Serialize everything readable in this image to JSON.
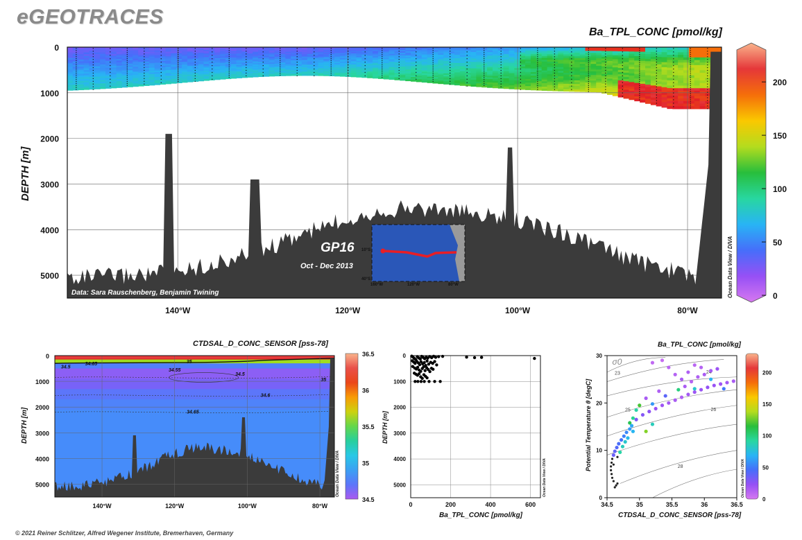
{
  "brand": "eGEOTRACES",
  "copyright": "© 2021 Reiner Schlitzer, Alfred Wegener Institute, Bremerhaven, Germany",
  "watermark": "Ocean Data View / DIVA",
  "colors": {
    "bathymetry": "#3b3b3b",
    "section_line": "#e81e25",
    "map_ocean": "#2a57b8",
    "map_land": "#9a9a9a"
  },
  "chart_data": [
    {
      "type": "heatmap",
      "title": "Ba_TPL_CONC [pmol/kg]",
      "ylabel": "DEPTH [m]",
      "xlabel": "",
      "x_ticks": [
        "140°W",
        "120°W",
        "100°W",
        "80°W"
      ],
      "x_tick_values": [
        -140,
        -120,
        -100,
        -80
      ],
      "xlim": [
        -153,
        -76
      ],
      "y_ticks": [
        "0",
        "1000",
        "2000",
        "3000",
        "4000",
        "5000"
      ],
      "y_tick_values": [
        0,
        1000,
        2000,
        3000,
        4000,
        5000
      ],
      "ylim": [
        0,
        5500
      ],
      "colorbar_ticks": [
        "0",
        "50",
        "100",
        "150",
        "200"
      ],
      "colorbar_range": [
        0,
        230
      ],
      "data_credit": "Data: Sara Rauschenberg, Benjamin Twining",
      "inset": {
        "cruise": "GP16",
        "period": "Oct - Dec 2013",
        "lat_labels": [
          "10°S",
          "40°S"
        ],
        "lon_labels": [
          "160°W",
          "120°W",
          "80°W"
        ]
      }
    },
    {
      "type": "heatmap",
      "title": "CTDSAL_D_CONC_SENSOR [pss-78]",
      "ylabel": "DEPTH [m]",
      "xlabel": "",
      "x_ticks": [
        "140°W",
        "120°W",
        "100°W",
        "80°W"
      ],
      "x_tick_values": [
        -140,
        -120,
        -100,
        -80
      ],
      "xlim": [
        -153,
        -76
      ],
      "y_ticks": [
        "0",
        "1000",
        "2000",
        "3000",
        "4000",
        "5000"
      ],
      "y_tick_values": [
        0,
        1000,
        2000,
        3000,
        4000,
        5000
      ],
      "ylim": [
        0,
        5500
      ],
      "colorbar_ticks": [
        "34.5",
        "35",
        "35.5",
        "36",
        "36.5"
      ],
      "colorbar_range": [
        34.5,
        36.5
      ],
      "contour_labels": [
        "34.65",
        "35",
        "34.55",
        "34.5",
        "34.6",
        "34.65",
        "35",
        "34.5"
      ]
    },
    {
      "type": "scatter",
      "title": "",
      "xlabel": "Ba_TPL_CONC [pmol/kg]",
      "ylabel": "DEPTH [m]",
      "x_ticks": [
        "0",
        "200",
        "400",
        "600"
      ],
      "y_ticks": [
        "0",
        "1000",
        "2000",
        "3000",
        "4000",
        "5000"
      ],
      "xlim": [
        0,
        650
      ],
      "ylim": [
        0,
        5500
      ],
      "grid": true,
      "points": [
        [
          5,
          20
        ],
        [
          12,
          60
        ],
        [
          18,
          110
        ],
        [
          25,
          150
        ],
        [
          33,
          40
        ],
        [
          40,
          90
        ],
        [
          48,
          130
        ],
        [
          55,
          30
        ],
        [
          62,
          70
        ],
        [
          70,
          120
        ],
        [
          78,
          55
        ],
        [
          85,
          100
        ],
        [
          95,
          35
        ],
        [
          105,
          80
        ],
        [
          115,
          25
        ],
        [
          125,
          65
        ],
        [
          140,
          40
        ],
        [
          160,
          30
        ],
        [
          8,
          200
        ],
        [
          15,
          250
        ],
        [
          22,
          300
        ],
        [
          30,
          220
        ],
        [
          38,
          280
        ],
        [
          45,
          350
        ],
        [
          52,
          240
        ],
        [
          60,
          320
        ],
        [
          68,
          270
        ],
        [
          75,
          380
        ],
        [
          82,
          210
        ],
        [
          90,
          330
        ],
        [
          100,
          260
        ],
        [
          110,
          300
        ],
        [
          120,
          230
        ],
        [
          130,
          360
        ],
        [
          10,
          420
        ],
        [
          20,
          480
        ],
        [
          28,
          520
        ],
        [
          35,
          450
        ],
        [
          42,
          560
        ],
        [
          50,
          610
        ],
        [
          58,
          500
        ],
        [
          65,
          430
        ],
        [
          72,
          580
        ],
        [
          80,
          470
        ],
        [
          88,
          540
        ],
        [
          96,
          620
        ],
        [
          104,
          490
        ],
        [
          112,
          530
        ],
        [
          18,
          680
        ],
        [
          26,
          720
        ],
        [
          34,
          760
        ],
        [
          42,
          700
        ],
        [
          50,
          820
        ],
        [
          58,
          880
        ],
        [
          66,
          740
        ],
        [
          74,
          800
        ],
        [
          82,
          860
        ],
        [
          22,
          1000
        ],
        [
          36,
          1000
        ],
        [
          52,
          1000
        ],
        [
          68,
          1000
        ],
        [
          92,
          1000
        ],
        [
          120,
          1000
        ],
        [
          148,
          1000
        ],
        [
          280,
          60
        ],
        [
          320,
          80
        ],
        [
          355,
          70
        ],
        [
          620,
          110
        ]
      ]
    },
    {
      "type": "scatter",
      "title": "Ba_TPL_CONC [pmol/kg]",
      "xlabel": "CTDSAL_D_CONC_SENSOR [pss-78]",
      "ylabel": "Potential Temperature θ [degC]",
      "x_ticks": [
        "34.5",
        "35",
        "35.5",
        "36",
        "36.5"
      ],
      "y_ticks": [
        "0",
        "10",
        "20",
        "30"
      ],
      "xlim": [
        34.5,
        36.5
      ],
      "ylim": [
        0,
        30
      ],
      "isopycnal_label": "σ0",
      "isopycnal_values": [
        "23",
        "24",
        "25",
        "26",
        "28"
      ],
      "colorbar_ticks": [
        "0",
        "50",
        "100",
        "150",
        "200"
      ],
      "colorbar_range": [
        0,
        230
      ],
      "points": [
        [
          34.62,
          2.2,
          8
        ],
        [
          34.64,
          2.6,
          10
        ],
        [
          34.66,
          3.0,
          12
        ],
        [
          34.6,
          3.5,
          15
        ],
        [
          34.58,
          4.2,
          18
        ],
        [
          34.57,
          5.0,
          20
        ],
        [
          34.56,
          5.8,
          22
        ],
        [
          34.56,
          6.6,
          25
        ],
        [
          34.57,
          7.4,
          28
        ],
        [
          34.58,
          8.2,
          30
        ],
        [
          34.6,
          9.0,
          35
        ],
        [
          34.62,
          9.8,
          38
        ],
        [
          34.65,
          10.6,
          42
        ],
        [
          34.68,
          11.4,
          45
        ],
        [
          34.72,
          12.2,
          48
        ],
        [
          34.76,
          13.0,
          52
        ],
        [
          34.8,
          13.8,
          55
        ],
        [
          34.85,
          14.5,
          60
        ],
        [
          34.88,
          15.2,
          65
        ],
        [
          34.9,
          14.0,
          70
        ],
        [
          34.82,
          12.6,
          72
        ],
        [
          34.78,
          11.8,
          80
        ],
        [
          34.74,
          10.8,
          85
        ],
        [
          34.7,
          9.6,
          90
        ],
        [
          34.66,
          8.6,
          75
        ],
        [
          34.6,
          7.0,
          40
        ],
        [
          34.95,
          16.5,
          30
        ],
        [
          35.05,
          17.5,
          28
        ],
        [
          35.15,
          18.2,
          25
        ],
        [
          35.25,
          18.8,
          22
        ],
        [
          35.35,
          19.5,
          20
        ],
        [
          35.45,
          20.0,
          18
        ],
        [
          35.55,
          20.6,
          16
        ],
        [
          35.65,
          21.2,
          14
        ],
        [
          35.75,
          21.8,
          18
        ],
        [
          35.85,
          22.3,
          20
        ],
        [
          35.95,
          22.8,
          22
        ],
        [
          36.05,
          23.3,
          24
        ],
        [
          36.15,
          23.7,
          22
        ],
        [
          36.25,
          24.0,
          20
        ],
        [
          36.35,
          24.3,
          18
        ],
        [
          36.45,
          24.6,
          16
        ],
        [
          35.7,
          23.5,
          15
        ],
        [
          35.8,
          24.5,
          12
        ],
        [
          35.9,
          25.5,
          14
        ],
        [
          36.0,
          26.0,
          16
        ],
        [
          36.1,
          26.8,
          18
        ],
        [
          36.2,
          27.2,
          20
        ],
        [
          35.95,
          27.5,
          12
        ],
        [
          35.85,
          28.0,
          10
        ],
        [
          35.75,
          26.5,
          14
        ],
        [
          35.65,
          25.0,
          16
        ],
        [
          35.2,
          28.5,
          8
        ],
        [
          35.35,
          29.0,
          6
        ],
        [
          35.45,
          27.5,
          10
        ],
        [
          35.55,
          26.0,
          12
        ],
        [
          35.3,
          22.5,
          14
        ],
        [
          35.1,
          21.0,
          16
        ],
        [
          35.0,
          19.5,
          120
        ],
        [
          34.95,
          18.5,
          90
        ],
        [
          35.2,
          19.8,
          60
        ],
        [
          35.4,
          21.5,
          40
        ],
        [
          35.6,
          22.8,
          100
        ],
        [
          35.85,
          23.0,
          80
        ],
        [
          36.1,
          25.0,
          70
        ],
        [
          36.3,
          23.0,
          50
        ],
        [
          34.85,
          15.8,
          110
        ],
        [
          34.9,
          16.8,
          95
        ],
        [
          35.1,
          14.0,
          130
        ],
        [
          35.2,
          15.5,
          85
        ]
      ]
    }
  ]
}
